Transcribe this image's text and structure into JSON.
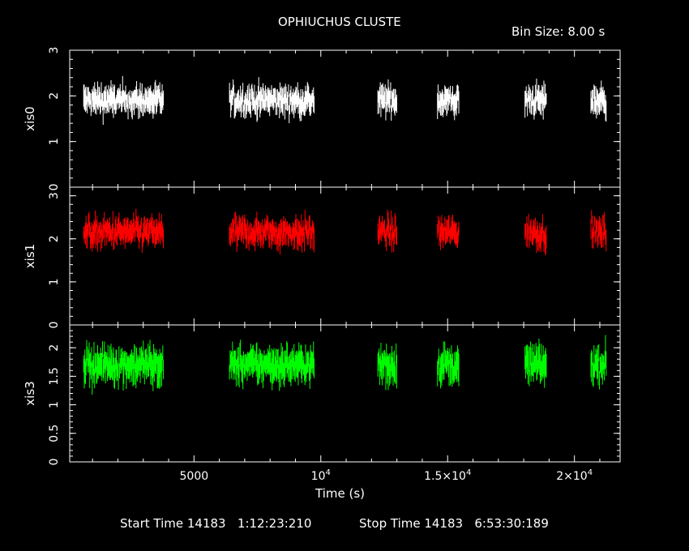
{
  "title": "OPHIUCHUS CLUSTE",
  "bin_size": "Bin Size: 8.00 s",
  "footer": {
    "start": "Start Time 14183   1:12:23:210",
    "stop": "Stop Time 14183   6:53:30:189"
  },
  "colors": {
    "background": "#000000",
    "axes": "#ffffff",
    "xis0": "#ffffff",
    "xis1": "#ff0000",
    "xis3": "#00ff00"
  },
  "chart_data": {
    "type": "scatter",
    "xlabel": "Time (s)",
    "xlim": [
      100,
      21800
    ],
    "x_ticks": [
      {
        "value": 5000,
        "label": "5000",
        "sup": ""
      },
      {
        "value": 10000,
        "label": "10",
        "sup": "4"
      },
      {
        "value": 15000,
        "label": "1.5×10",
        "sup": "4"
      },
      {
        "value": 20000,
        "label": "2×10",
        "sup": "4"
      }
    ],
    "segments": [
      [
        650,
        3800
      ],
      [
        6400,
        9750
      ],
      [
        12250,
        13000
      ],
      [
        14600,
        15450
      ],
      [
        18050,
        18900
      ],
      [
        20650,
        21250
      ]
    ],
    "panels": [
      {
        "name": "xis0",
        "ylabel": "xis0",
        "color": "#ffffff",
        "ylim": [
          0,
          3
        ],
        "yticks": [
          0,
          1,
          2,
          3
        ],
        "tick_labels": [
          "0",
          "1",
          "2",
          "3"
        ],
        "mean": 1.9,
        "spread": 0.3
      },
      {
        "name": "xis1",
        "ylabel": "xis1",
        "color": "#ff0000",
        "ylim": [
          0,
          3.2
        ],
        "yticks": [
          0,
          1,
          2,
          3
        ],
        "tick_labels": [
          "0",
          "1",
          "2",
          "3"
        ],
        "mean": 2.15,
        "spread": 0.35
      },
      {
        "name": "xis3",
        "ylabel": "xis3",
        "color": "#00ff00",
        "ylim": [
          0,
          2.4
        ],
        "yticks": [
          0,
          0.5,
          1,
          1.5,
          2
        ],
        "tick_labels": [
          "0",
          "0.5",
          "1",
          "1.5",
          "2"
        ],
        "mean": 1.7,
        "spread": 0.28
      }
    ]
  }
}
